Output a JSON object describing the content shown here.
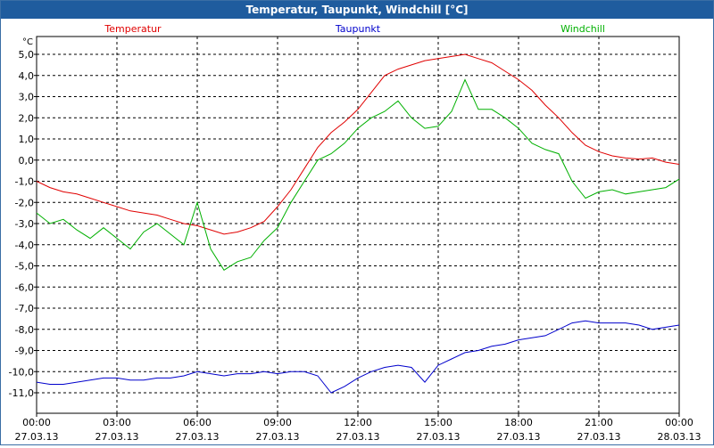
{
  "window": {
    "title": "Temperatur, Taupunkt, Windchill [°C]"
  },
  "colors": {
    "temperatur": "#e00000",
    "taupunkt": "#0000cc",
    "windchill": "#00b000",
    "titlebar": "#1f5c9e"
  },
  "chart_data": {
    "type": "line",
    "title": "Temperatur, Taupunkt, Windchill [°C]",
    "unit": "°C",
    "ylim": [
      -11.5,
      5.5
    ],
    "xlim": [
      0,
      24
    ],
    "grid": true,
    "legend_position": "top",
    "y_ticks": [
      5,
      4,
      3,
      2,
      1,
      0,
      -1,
      -2,
      -3,
      -4,
      -5,
      -6,
      -7,
      -8,
      -9,
      -10,
      -11
    ],
    "y_tick_labels": [
      "5,0",
      "4,0",
      "3,0",
      "2,0",
      "1,0",
      "0,0",
      "-1,0",
      "-2,0",
      "-3,0",
      "-4,0",
      "-5,0",
      "-6,0",
      "-7,0",
      "-8,0",
      "-9,0",
      "-10,0",
      "-11,0"
    ],
    "x_ticks": [
      {
        "hour": 0,
        "time": "00:00",
        "date": "27.03.13"
      },
      {
        "hour": 3,
        "time": "03:00",
        "date": "27.03.13"
      },
      {
        "hour": 6,
        "time": "06:00",
        "date": "27.03.13"
      },
      {
        "hour": 9,
        "time": "09:00",
        "date": "27.03.13"
      },
      {
        "hour": 12,
        "time": "12:00",
        "date": "27.03.13"
      },
      {
        "hour": 15,
        "time": "15:00",
        "date": "27.03.13"
      },
      {
        "hour": 18,
        "time": "18:00",
        "date": "27.03.13"
      },
      {
        "hour": 21,
        "time": "21:00",
        "date": "27.03.13"
      },
      {
        "hour": 24,
        "time": "00:00",
        "date": "28.03.13"
      }
    ],
    "series": [
      {
        "name": "Temperatur",
        "color": "#e00000",
        "x": [
          0,
          0.5,
          1,
          1.5,
          2,
          2.5,
          3,
          3.5,
          4,
          4.5,
          5,
          5.5,
          6,
          6.5,
          7,
          7.5,
          8,
          8.5,
          9,
          9.5,
          10,
          10.5,
          11,
          11.5,
          12,
          12.5,
          13,
          13.5,
          14,
          14.5,
          15,
          15.5,
          16,
          16.5,
          17,
          17.5,
          18,
          18.5,
          19,
          19.5,
          20,
          20.5,
          21,
          21.5,
          22,
          22.5,
          23,
          23.5,
          24
        ],
        "values": [
          -1.0,
          -1.3,
          -1.5,
          -1.6,
          -1.8,
          -2.0,
          -2.2,
          -2.4,
          -2.5,
          -2.6,
          -2.8,
          -3.0,
          -3.1,
          -3.3,
          -3.5,
          -3.4,
          -3.2,
          -2.9,
          -2.2,
          -1.4,
          -0.4,
          0.6,
          1.3,
          1.8,
          2.4,
          3.2,
          4.0,
          4.3,
          4.5,
          4.7,
          4.8,
          4.9,
          5.0,
          4.8,
          4.6,
          4.2,
          3.8,
          3.3,
          2.6,
          2.0,
          1.3,
          0.7,
          0.4,
          0.2,
          0.1,
          0.05,
          0.1,
          -0.1,
          -0.2
        ]
      },
      {
        "name": "Taupunkt",
        "color": "#0000cc",
        "x": [
          0,
          0.5,
          1,
          1.5,
          2,
          2.5,
          3,
          3.5,
          4,
          4.5,
          5,
          5.5,
          6,
          6.5,
          7,
          7.5,
          8,
          8.5,
          9,
          9.5,
          10,
          10.5,
          11,
          11.5,
          12,
          12.5,
          13,
          13.5,
          14,
          14.5,
          15,
          15.5,
          16,
          16.5,
          17,
          17.5,
          18,
          18.5,
          19,
          19.5,
          20,
          20.5,
          21,
          21.5,
          22,
          22.5,
          23,
          23.5,
          24
        ],
        "values": [
          -10.5,
          -10.6,
          -10.6,
          -10.5,
          -10.4,
          -10.3,
          -10.3,
          -10.4,
          -10.4,
          -10.3,
          -10.3,
          -10.2,
          -10.0,
          -10.1,
          -10.2,
          -10.1,
          -10.1,
          -10.0,
          -10.1,
          -10.0,
          -10.0,
          -10.2,
          -11.0,
          -10.7,
          -10.3,
          -10.0,
          -9.8,
          -9.7,
          -9.8,
          -10.5,
          -9.7,
          -9.4,
          -9.1,
          -9.0,
          -8.8,
          -8.7,
          -8.5,
          -8.4,
          -8.3,
          -8.0,
          -7.7,
          -7.6,
          -7.7,
          -7.7,
          -7.7,
          -7.8,
          -8.0,
          -7.9,
          -7.8
        ]
      },
      {
        "name": "Windchill",
        "color": "#00b000",
        "x": [
          0,
          0.5,
          1,
          1.5,
          2,
          2.5,
          3,
          3.5,
          4,
          4.5,
          5,
          5.5,
          6,
          6.5,
          7,
          7.5,
          8,
          8.5,
          9,
          9.5,
          10,
          10.5,
          11,
          11.5,
          12,
          12.5,
          13,
          13.5,
          14,
          14.5,
          15,
          15.5,
          16,
          16.5,
          17,
          17.5,
          18,
          18.5,
          19,
          19.5,
          20,
          20.5,
          21,
          21.5,
          22,
          22.5,
          23,
          23.5,
          24
        ],
        "values": [
          -2.5,
          -3.0,
          -2.8,
          -3.3,
          -3.7,
          -3.2,
          -3.7,
          -4.2,
          -3.4,
          -3.0,
          -3.5,
          -4.0,
          -2.0,
          -4.2,
          -5.2,
          -4.8,
          -4.6,
          -3.8,
          -3.2,
          -2.0,
          -1.0,
          0.0,
          0.3,
          0.8,
          1.5,
          2.0,
          2.3,
          2.8,
          2.0,
          1.5,
          1.6,
          2.3,
          3.8,
          2.4,
          2.4,
          2.0,
          1.5,
          0.8,
          0.5,
          0.3,
          -1.0,
          -1.8,
          -1.5,
          -1.4,
          -1.6,
          -1.5,
          -1.4,
          -1.3,
          -0.9
        ]
      }
    ]
  }
}
